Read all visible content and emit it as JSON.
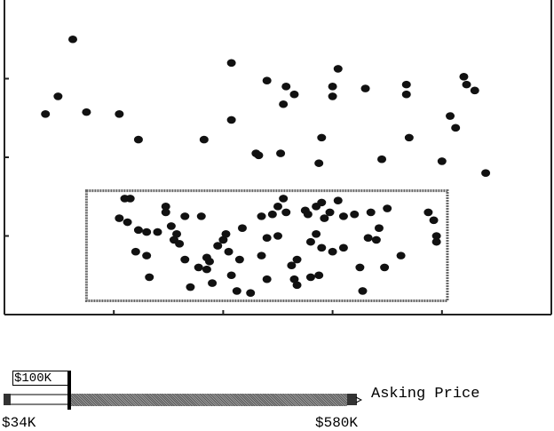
{
  "slider": {
    "title": "Asking Price",
    "min_label": "$34K",
    "max_label": "$580K",
    "low_value_label": "$100K",
    "min_value": 34,
    "max_value": 580,
    "low_value": 100,
    "high_value": 580
  },
  "colors": {
    "point": "#111111",
    "axis": "#222222",
    "selection": "#666666",
    "track_fill": "#777777"
  },
  "chart_data": {
    "type": "scatter",
    "title": "",
    "xlabel": "",
    "ylabel": "",
    "grid": false,
    "xlim": [
      0,
      10
    ],
    "ylim": [
      0,
      8
    ],
    "x_ticks": [
      2,
      4,
      6,
      8,
      10
    ],
    "y_ticks": [
      2,
      4,
      6
    ],
    "selection_box": {
      "x0": 1.5,
      "x1": 8.1,
      "y0": 0.35,
      "y1": 3.15
    },
    "series": [
      {
        "points": [
          [
            1.25,
            7.0
          ],
          [
            0.98,
            5.55
          ],
          [
            0.75,
            5.1
          ],
          [
            1.5,
            5.15
          ],
          [
            2.1,
            5.1
          ],
          [
            2.45,
            4.45
          ],
          [
            3.65,
            4.45
          ],
          [
            4.15,
            6.4
          ],
          [
            4.15,
            4.95
          ],
          [
            4.8,
            5.95
          ],
          [
            5.15,
            5.8
          ],
          [
            5.3,
            5.6
          ],
          [
            5.1,
            5.35
          ],
          [
            4.6,
            4.1
          ],
          [
            5.05,
            4.1
          ],
          [
            4.65,
            4.05
          ],
          [
            5.8,
            4.5
          ],
          [
            5.75,
            3.85
          ],
          [
            6.1,
            6.25
          ],
          [
            6.0,
            5.8
          ],
          [
            6.0,
            5.55
          ],
          [
            6.6,
            5.75
          ],
          [
            7.35,
            5.85
          ],
          [
            7.35,
            5.6
          ],
          [
            7.4,
            4.5
          ],
          [
            6.9,
            3.95
          ],
          [
            8.4,
            6.05
          ],
          [
            8.45,
            5.85
          ],
          [
            8.6,
            5.7
          ],
          [
            8.15,
            5.05
          ],
          [
            8.25,
            4.75
          ],
          [
            8.0,
            3.9
          ],
          [
            8.8,
            3.6
          ]
        ]
      },
      {
        "points": [
          [
            2.3,
            2.95
          ],
          [
            2.2,
            2.95
          ],
          [
            2.1,
            2.45
          ],
          [
            2.25,
            2.35
          ],
          [
            2.45,
            2.15
          ],
          [
            2.6,
            2.1
          ],
          [
            2.4,
            1.6
          ],
          [
            2.6,
            1.5
          ],
          [
            2.65,
            0.95
          ],
          [
            2.8,
            2.1
          ],
          [
            2.95,
            2.6
          ],
          [
            2.95,
            2.75
          ],
          [
            3.05,
            2.25
          ],
          [
            3.15,
            2.05
          ],
          [
            3.1,
            1.9
          ],
          [
            3.2,
            1.8
          ],
          [
            3.3,
            2.5
          ],
          [
            3.3,
            1.4
          ],
          [
            3.4,
            0.7
          ],
          [
            3.55,
            1.2
          ],
          [
            3.6,
            2.5
          ],
          [
            3.7,
            1.15
          ],
          [
            3.75,
            1.35
          ],
          [
            3.7,
            1.45
          ],
          [
            3.8,
            0.8
          ],
          [
            3.9,
            1.75
          ],
          [
            4.0,
            1.9
          ],
          [
            4.05,
            2.05
          ],
          [
            4.1,
            1.6
          ],
          [
            4.15,
            1.0
          ],
          [
            4.25,
            0.6
          ],
          [
            4.3,
            1.4
          ],
          [
            4.35,
            2.2
          ],
          [
            4.5,
            0.55
          ],
          [
            4.7,
            2.5
          ],
          [
            4.7,
            1.5
          ],
          [
            4.8,
            1.95
          ],
          [
            4.8,
            0.9
          ],
          [
            4.9,
            2.55
          ],
          [
            5.0,
            2.75
          ],
          [
            5.0,
            2.0
          ],
          [
            5.1,
            2.95
          ],
          [
            5.15,
            2.6
          ],
          [
            5.25,
            1.25
          ],
          [
            5.35,
            1.4
          ],
          [
            5.3,
            0.9
          ],
          [
            5.35,
            0.75
          ],
          [
            5.5,
            2.65
          ],
          [
            5.55,
            2.55
          ],
          [
            5.6,
            1.85
          ],
          [
            5.6,
            0.95
          ],
          [
            5.7,
            2.75
          ],
          [
            5.7,
            2.05
          ],
          [
            5.75,
            1.0
          ],
          [
            5.8,
            2.85
          ],
          [
            5.8,
            1.7
          ],
          [
            5.85,
            2.45
          ],
          [
            5.95,
            2.6
          ],
          [
            6.0,
            1.6
          ],
          [
            6.1,
            2.9
          ],
          [
            6.2,
            2.5
          ],
          [
            6.2,
            1.7
          ],
          [
            6.4,
            2.55
          ],
          [
            6.5,
            1.2
          ],
          [
            6.55,
            0.6
          ],
          [
            6.65,
            1.95
          ],
          [
            6.7,
            2.6
          ],
          [
            6.8,
            1.9
          ],
          [
            6.85,
            2.2
          ],
          [
            6.95,
            1.2
          ],
          [
            7.0,
            2.7
          ],
          [
            7.25,
            1.5
          ],
          [
            7.75,
            2.6
          ],
          [
            7.85,
            2.4
          ],
          [
            7.9,
            2.0
          ],
          [
            7.9,
            1.85
          ]
        ]
      }
    ]
  }
}
